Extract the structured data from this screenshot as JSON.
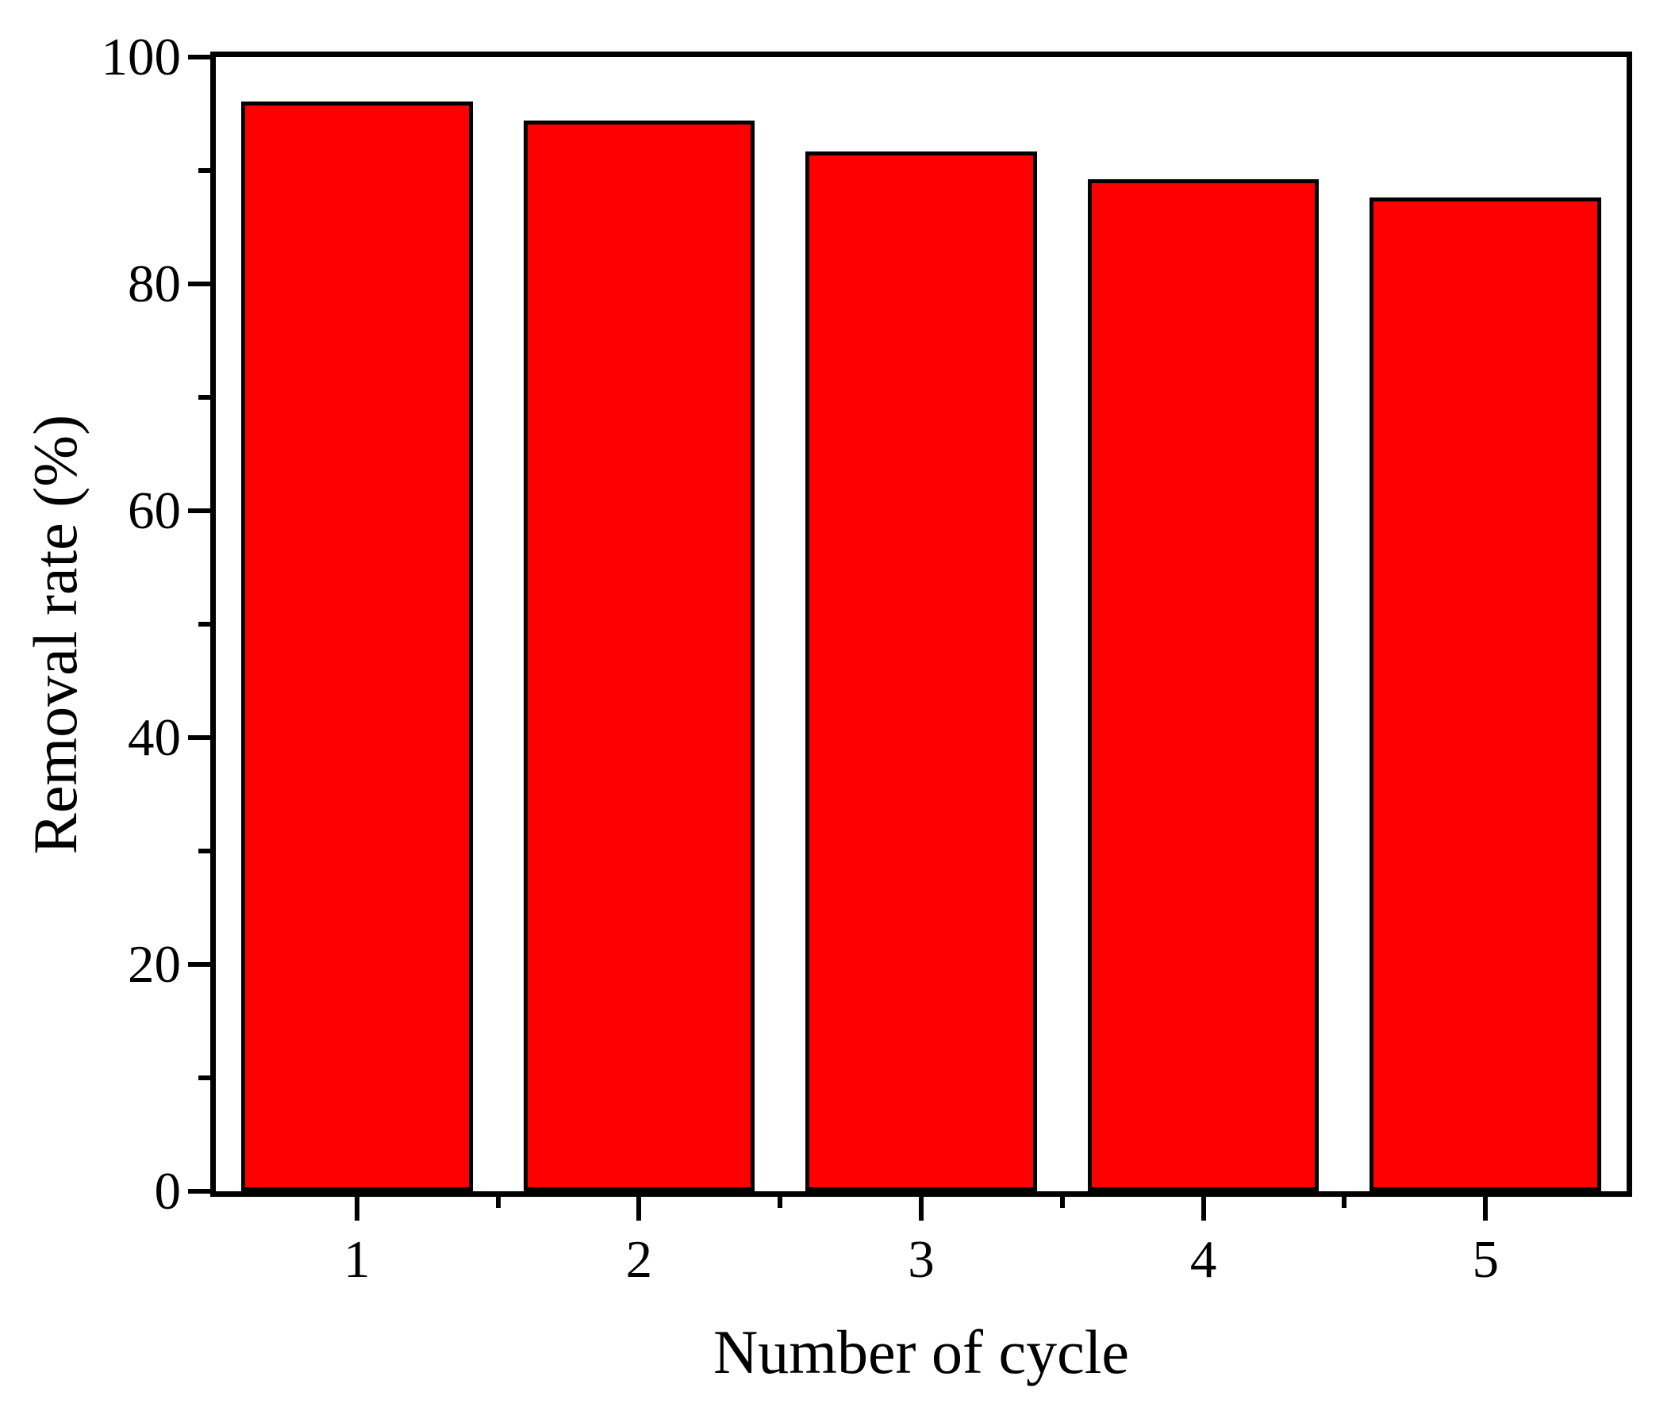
{
  "chart_data": {
    "type": "bar",
    "title": "",
    "categories": [
      "1",
      "2",
      "3",
      "4",
      "5"
    ],
    "values": [
      96.1,
      94.4,
      91.7,
      89.2,
      87.6
    ],
    "xlabel": "Number of cycle",
    "ylabel": "Removal rate (%)",
    "ylim": [
      0,
      100
    ],
    "y_major_ticks": [
      0,
      20,
      40,
      60,
      80,
      100
    ],
    "y_minor_step": 10,
    "x_minor_ticks_at_boundaries": true,
    "grid": false,
    "legend": "none",
    "axis_box": true,
    "tick_direction": "out",
    "bar_fill_color": "#FF0000",
    "bar_border_color": "#000000",
    "axis_color": "#000000",
    "background_color": "#FFFFFF",
    "bar_width_fraction": 0.82
  }
}
